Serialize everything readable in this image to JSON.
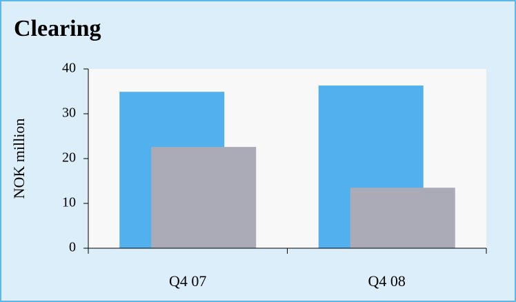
{
  "chart_data": {
    "type": "bar",
    "title": "Clearing",
    "y_label": "NOK million",
    "categories": [
      "Q4 07",
      "Q4 08"
    ],
    "series": [
      {
        "color": "#52b0ef",
        "values": [
          34.9,
          36.3
        ]
      },
      {
        "color": "#aaabb7",
        "values": [
          22.6,
          13.5
        ]
      }
    ],
    "ylim": [
      0,
      40
    ],
    "yticks": [
      0,
      10,
      20,
      30,
      40
    ],
    "grid": false
  }
}
